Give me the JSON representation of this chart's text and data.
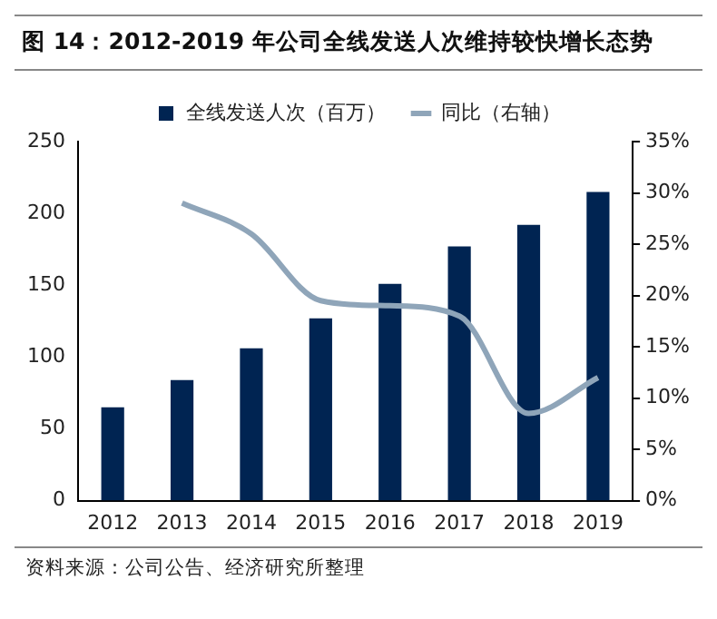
{
  "chart_data": {
    "type": "bar",
    "title": "图 14：2012-2019 年公司全线发送人次维持较快增长态势",
    "categories": [
      "2012",
      "2013",
      "2014",
      "2015",
      "2016",
      "2017",
      "2018",
      "2019"
    ],
    "series": [
      {
        "name": "全线发送人次（百万）",
        "color": "#002452",
        "values": [
          65,
          84,
          106,
          127,
          151,
          177,
          192,
          215
        ]
      },
      {
        "name": "同比（右轴）",
        "type": "line",
        "axis": "y2",
        "color": "#8fa5b9",
        "values": [
          null,
          29,
          26,
          19.5,
          19,
          18,
          8.5,
          12
        ]
      }
    ],
    "ylim": [
      0,
      250
    ],
    "yticks": [
      0,
      50,
      100,
      150,
      200,
      250
    ],
    "y2lim": [
      0,
      35
    ],
    "y2ticks": [
      {
        "value": 0,
        "label": "0%"
      },
      {
        "value": 5,
        "label": "5%"
      },
      {
        "value": 10,
        "label": "10%"
      },
      {
        "value": 15,
        "label": "15%"
      },
      {
        "value": 20,
        "label": "20%"
      },
      {
        "value": 25,
        "label": "25%"
      },
      {
        "value": 30,
        "label": "30%"
      },
      {
        "value": 35,
        "label": "35%"
      }
    ],
    "grid": false,
    "legend": "top",
    "marker": "none",
    "annotations": [
      "资料来源：公司公告、经济研究所整理"
    ]
  }
}
